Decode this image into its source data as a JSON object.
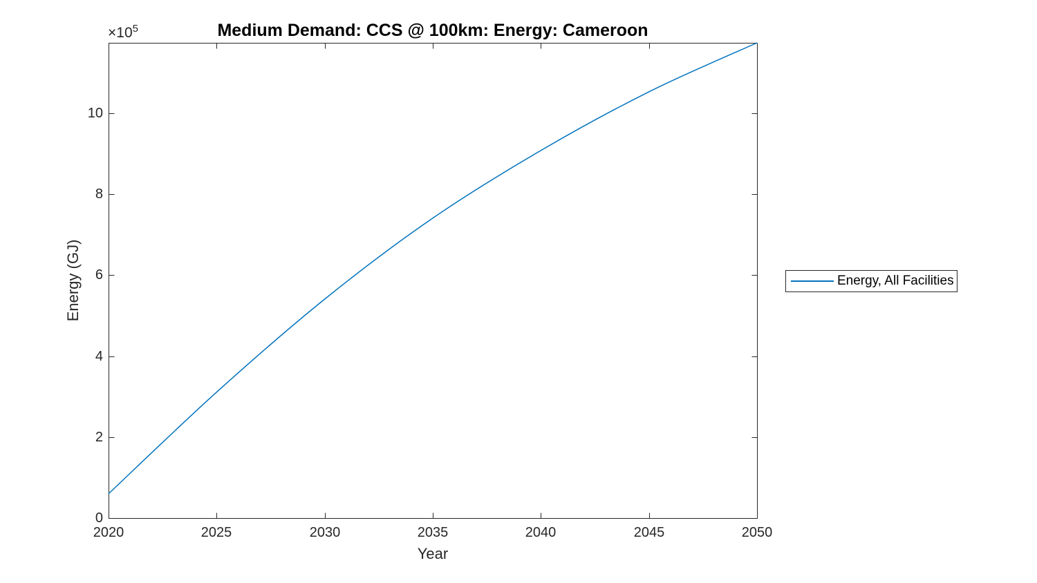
{
  "figure": {
    "title": "Medium Demand: CCS @ 100km: Energy: Cameroon",
    "xlabel": "Year",
    "ylabel": "Energy (GJ)",
    "y_axis_exponent": {
      "base": "×10",
      "power": "5"
    },
    "background_color": "#ffffff",
    "axis_color": "#262626",
    "title_color": "#000000"
  },
  "legend": {
    "entries": [
      {
        "label": "Energy, All Facilities",
        "color": "#0072BD"
      }
    ],
    "position": "right-outside",
    "border_color": "#262626"
  },
  "chart_data": {
    "type": "line",
    "title": "Medium Demand: CCS @ 100km: Energy: Cameroon",
    "xlabel": "Year",
    "ylabel": "Energy (GJ)",
    "x": [
      2020,
      2025,
      2030,
      2035,
      2040,
      2045,
      2050
    ],
    "series": [
      {
        "name": "Energy, All Facilities",
        "color": "#0072BD",
        "values": [
          60000,
          311000,
          541000,
          741000,
          908000,
          1053000,
          1174000
        ]
      }
    ],
    "xlim": [
      2020,
      2050
    ],
    "ylim": [
      0,
      1174000
    ],
    "x_ticks": [
      2020,
      2025,
      2030,
      2035,
      2040,
      2045,
      2050
    ],
    "y_ticks": [
      0,
      200000,
      400000,
      600000,
      800000,
      1000000
    ],
    "y_tick_labels": [
      "0",
      "2",
      "4",
      "6",
      "8",
      "10"
    ],
    "y_scale_exponent": "×10^5",
    "grid": false,
    "box": true,
    "tick_direction": "in",
    "legend_position": "right-outside"
  }
}
